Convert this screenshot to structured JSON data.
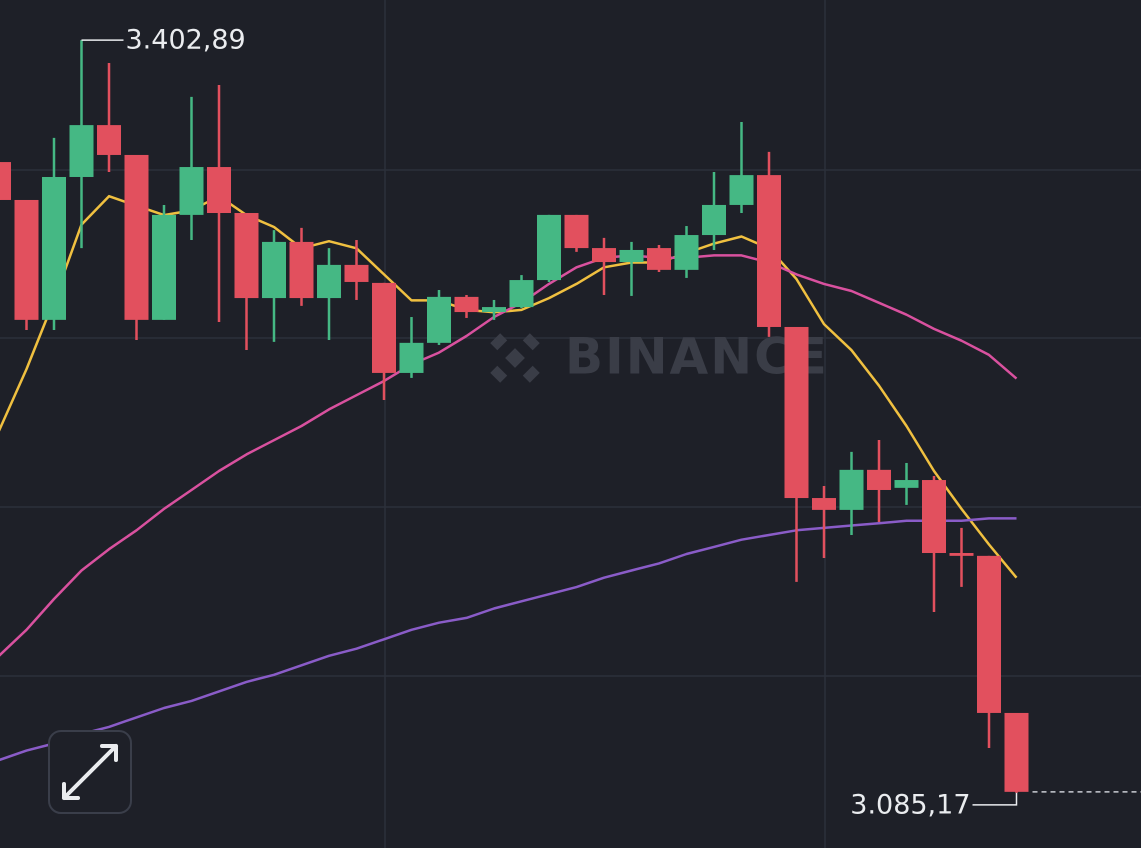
{
  "chart_data": {
    "type": "candlestick",
    "watermark": "BINANCE",
    "annotations": {
      "high": "3.402,89",
      "low": "3.085,17"
    },
    "up_color": "#45b884",
    "down_color": "#e2505e",
    "ylim": [
      3061.9,
      3419.8
    ],
    "candles": [
      {
        "open": 3351.4,
        "high": 3351.4,
        "low": 3335.4,
        "close": 3335.4
      },
      {
        "open": 3335.4,
        "high": 3335.4,
        "low": 3280.5,
        "close": 3284.8
      },
      {
        "open": 3284.8,
        "high": 3361.6,
        "low": 3280.5,
        "close": 3345.1
      },
      {
        "open": 3345.1,
        "high": 3402.89,
        "low": 3315.1,
        "close": 3367.0
      },
      {
        "open": 3367.0,
        "high": 3393.2,
        "low": 3347.2,
        "close": 3354.4
      },
      {
        "open": 3354.4,
        "high": 3354.4,
        "low": 3276.3,
        "close": 3284.8
      },
      {
        "open": 3284.8,
        "high": 3333.3,
        "low": 3284.8,
        "close": 3329.1
      },
      {
        "open": 3329.1,
        "high": 3378.9,
        "low": 3318.5,
        "close": 3349.3
      },
      {
        "open": 3349.3,
        "high": 3383.9,
        "low": 3283.9,
        "close": 3329.9
      },
      {
        "open": 3329.9,
        "high": 3329.9,
        "low": 3272.1,
        "close": 3294.0
      },
      {
        "open": 3294.0,
        "high": 3322.7,
        "low": 3275.5,
        "close": 3317.7
      },
      {
        "open": 3317.7,
        "high": 3323.6,
        "low": 3290.7,
        "close": 3294.0
      },
      {
        "open": 3294.0,
        "high": 3315.1,
        "low": 3276.3,
        "close": 3308.0
      },
      {
        "open": 3308.0,
        "high": 3318.5,
        "low": 3293.2,
        "close": 3300.8
      },
      {
        "open": 3300.4,
        "high": 3300.4,
        "low": 3251.0,
        "close": 3262.4
      },
      {
        "open": 3262.4,
        "high": 3286.0,
        "low": 3260.3,
        "close": 3275.1
      },
      {
        "open": 3275.1,
        "high": 3297.4,
        "low": 3274.2,
        "close": 3294.5
      },
      {
        "open": 3294.5,
        "high": 3295.3,
        "low": 3285.6,
        "close": 3288.1
      },
      {
        "open": 3288.1,
        "high": 3293.2,
        "low": 3284.8,
        "close": 3290.2
      },
      {
        "open": 3290.2,
        "high": 3303.7,
        "low": 3289.8,
        "close": 3301.6
      },
      {
        "open": 3301.6,
        "high": 3329.1,
        "low": 3300.8,
        "close": 3329.1
      },
      {
        "open": 3329.1,
        "high": 3329.1,
        "low": 3313.5,
        "close": 3315.1
      },
      {
        "open": 3315.1,
        "high": 3319.4,
        "low": 3295.3,
        "close": 3309.2
      },
      {
        "open": 3309.2,
        "high": 3317.7,
        "low": 3294.9,
        "close": 3314.3
      },
      {
        "open": 3315.1,
        "high": 3316.4,
        "low": 3305.0,
        "close": 3305.9
      },
      {
        "open": 3305.9,
        "high": 3324.4,
        "low": 3302.5,
        "close": 3320.6
      },
      {
        "open": 3320.6,
        "high": 3347.2,
        "low": 3314.3,
        "close": 3333.3
      },
      {
        "open": 3333.3,
        "high": 3368.3,
        "low": 3329.9,
        "close": 3345.9
      },
      {
        "open": 3345.9,
        "high": 3355.7,
        "low": 3277.6,
        "close": 3281.8
      },
      {
        "open": 3281.8,
        "high": 3281.8,
        "low": 3174.2,
        "close": 3209.6
      },
      {
        "open": 3209.6,
        "high": 3214.7,
        "low": 3184.3,
        "close": 3204.6
      },
      {
        "open": 3204.6,
        "high": 3229.1,
        "low": 3194.0,
        "close": 3221.5
      },
      {
        "open": 3221.5,
        "high": 3234.1,
        "low": 3199.5,
        "close": 3213.0
      },
      {
        "open": 3213.9,
        "high": 3224.4,
        "low": 3206.7,
        "close": 3217.2
      },
      {
        "open": 3217.2,
        "high": 3218.9,
        "low": 3161.5,
        "close": 3186.4
      },
      {
        "open": 3186.4,
        "high": 3197.0,
        "low": 3172.1,
        "close": 3185.2
      },
      {
        "open": 3185.2,
        "high": 3185.2,
        "low": 3104.1,
        "close": 3118.9
      },
      {
        "open": 3118.9,
        "high": 3118.9,
        "low": 3085.17,
        "close": 3085.6
      }
    ],
    "lines": [
      {
        "color": "#f0c040",
        "values": [
          3238,
          3264,
          3293,
          3325,
          3337,
          3333,
          3329,
          3331,
          3337,
          3329,
          3324,
          3315,
          3318,
          3315,
          3304,
          3293,
          3293,
          3289,
          3288,
          3289,
          3294,
          3300,
          3307,
          3309,
          3309,
          3313,
          3317,
          3320,
          3315,
          3302,
          3283,
          3272,
          3257,
          3240,
          3221,
          3205,
          3190,
          3176
        ]
      },
      {
        "color": "#d9519f",
        "values": [
          3143,
          3154,
          3167,
          3179,
          3188,
          3196,
          3205,
          3213,
          3221,
          3228,
          3234,
          3240,
          3247,
          3253,
          3259,
          3266,
          3271,
          3278,
          3286,
          3292,
          3300,
          3307,
          3311,
          3312,
          3311,
          3311,
          3312,
          3312,
          3309,
          3304,
          3300,
          3297,
          3292,
          3287,
          3281,
          3276,
          3270,
          3260
        ]
      },
      {
        "color": "#8a5cc8",
        "values": [
          3099,
          3103,
          3106,
          3110,
          3113,
          3117,
          3121,
          3124,
          3128,
          3132,
          3135,
          3139,
          3143,
          3146,
          3150,
          3154,
          3157,
          3159,
          3163,
          3166,
          3169,
          3172,
          3176,
          3179,
          3182,
          3186,
          3189,
          3192,
          3194,
          3196,
          3197,
          3198,
          3199,
          3200,
          3200,
          3200,
          3201,
          3201
        ]
      }
    ]
  }
}
